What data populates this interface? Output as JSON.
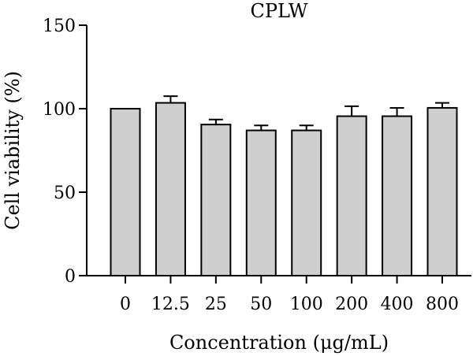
{
  "chart_data": {
    "type": "bar",
    "title": "CPLW",
    "xlabel": "Concentration (μg/mL)",
    "ylabel": "Cell viability (%)",
    "ylim": [
      0,
      150
    ],
    "yticks": [
      0,
      50,
      100,
      150
    ],
    "categories": [
      "0",
      "12.5",
      "25",
      "50",
      "100",
      "200",
      "400",
      "800"
    ],
    "values": [
      100,
      103.5,
      90.5,
      87,
      87,
      95.5,
      95.5,
      100.5
    ],
    "error": [
      0,
      4,
      3,
      3,
      3,
      6,
      5,
      3
    ],
    "grid": false,
    "colors": {
      "bar_fill": "#cfcfcf",
      "bar_stroke": "#000000"
    }
  }
}
